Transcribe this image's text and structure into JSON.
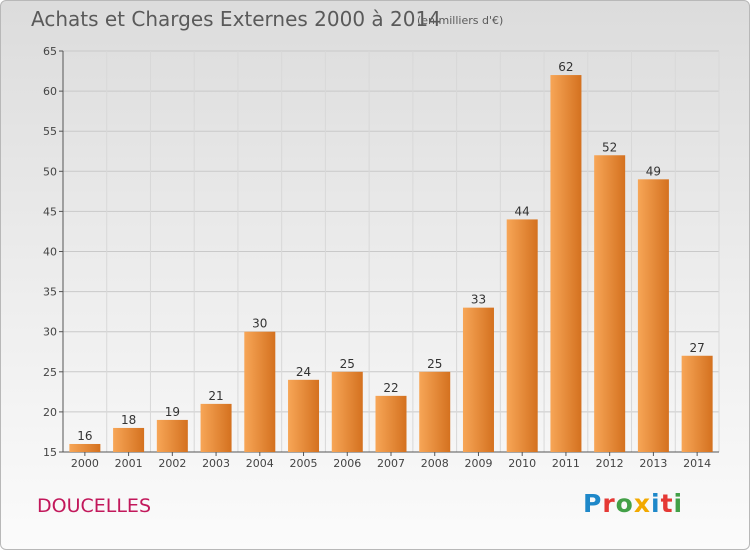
{
  "header": {
    "title": "Achats et Charges Externes 2000 à 2014",
    "unit": "(en milliers d'€)"
  },
  "footer": {
    "commune": "DOUCELLES",
    "brand": "Proxiti"
  },
  "colors": {
    "bar_light": "#f7a657",
    "bar_dark": "#d4711f",
    "title": "#5a5a5a",
    "commune": "#c2185b"
  },
  "chart_data": {
    "type": "bar",
    "categories": [
      "2000",
      "2001",
      "2002",
      "2003",
      "2004",
      "2005",
      "2006",
      "2007",
      "2008",
      "2009",
      "2010",
      "2011",
      "2012",
      "2013",
      "2014"
    ],
    "values": [
      16,
      18,
      19,
      21,
      30,
      24,
      25,
      22,
      25,
      33,
      44,
      62,
      52,
      49,
      27
    ],
    "ylim": [
      15,
      65
    ],
    "yticks": [
      15,
      20,
      25,
      30,
      35,
      40,
      45,
      50,
      55,
      60,
      65
    ],
    "grid": true,
    "data_labels": true
  }
}
